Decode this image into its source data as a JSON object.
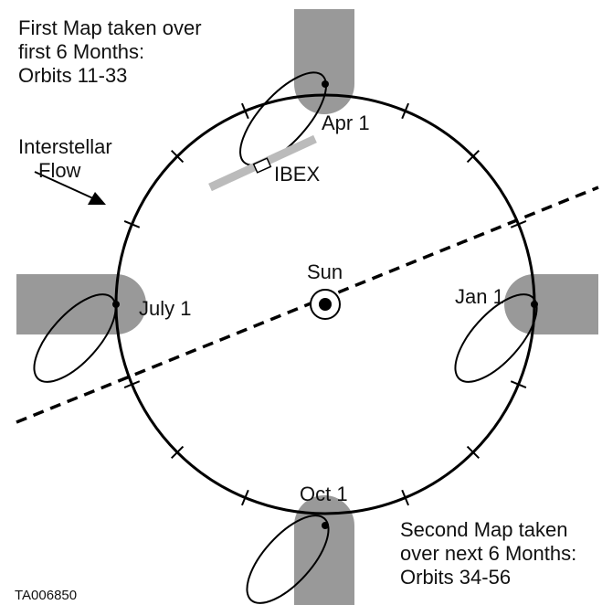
{
  "annotations": {
    "first_map": [
      "First Map taken over",
      "first 6 Months:",
      "Orbits 11-33"
    ],
    "second_map": [
      "Second Map taken",
      "over next 6 Months:",
      "Orbits 34-56"
    ],
    "flow": [
      "Interstellar",
      "Flow"
    ]
  },
  "labels": {
    "apr": "Apr 1",
    "july": "July 1",
    "jan": "Jan 1",
    "oct": "Oct 1",
    "sun": "Sun",
    "ibex": "IBEX"
  },
  "figure_id": "TA006850"
}
